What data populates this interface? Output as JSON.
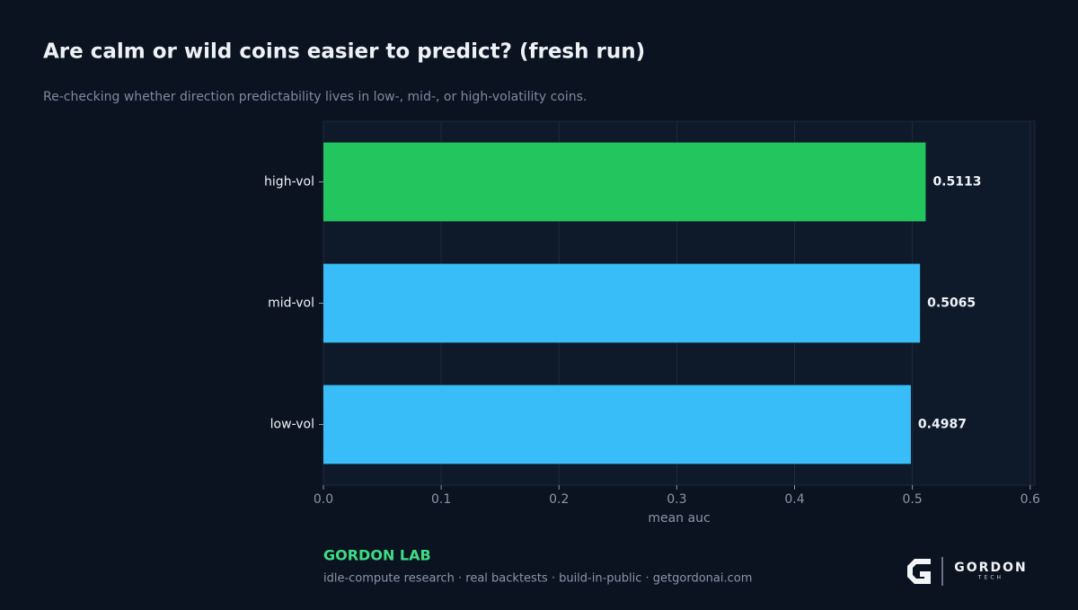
{
  "chart_data": {
    "type": "barh",
    "title": "Are calm or wild coins easier to predict? (fresh run)",
    "subtitle": "Re-checking whether direction predictability lives in low-, mid-, or high-volatility coins.",
    "categories": [
      "high-vol",
      "mid-vol",
      "low-vol"
    ],
    "values": [
      0.5113,
      0.5065,
      0.4987
    ],
    "colors": [
      "#22c55e",
      "#38bdf8",
      "#38bdf8"
    ],
    "xlabel": "mean auc",
    "xlim": [
      0,
      0.604
    ],
    "xticks": [
      {
        "value": 0,
        "label": "0.0"
      },
      0.1,
      0.2,
      0.3,
      0.4,
      0.5,
      0.6
    ],
    "grid": true
  },
  "footer": {
    "brand": "GORDON LAB",
    "tagline": "idle-compute research · real backtests · build-in-public · getgordonai.com",
    "logo_name": "GORDON",
    "logo_sub": "TECH"
  }
}
